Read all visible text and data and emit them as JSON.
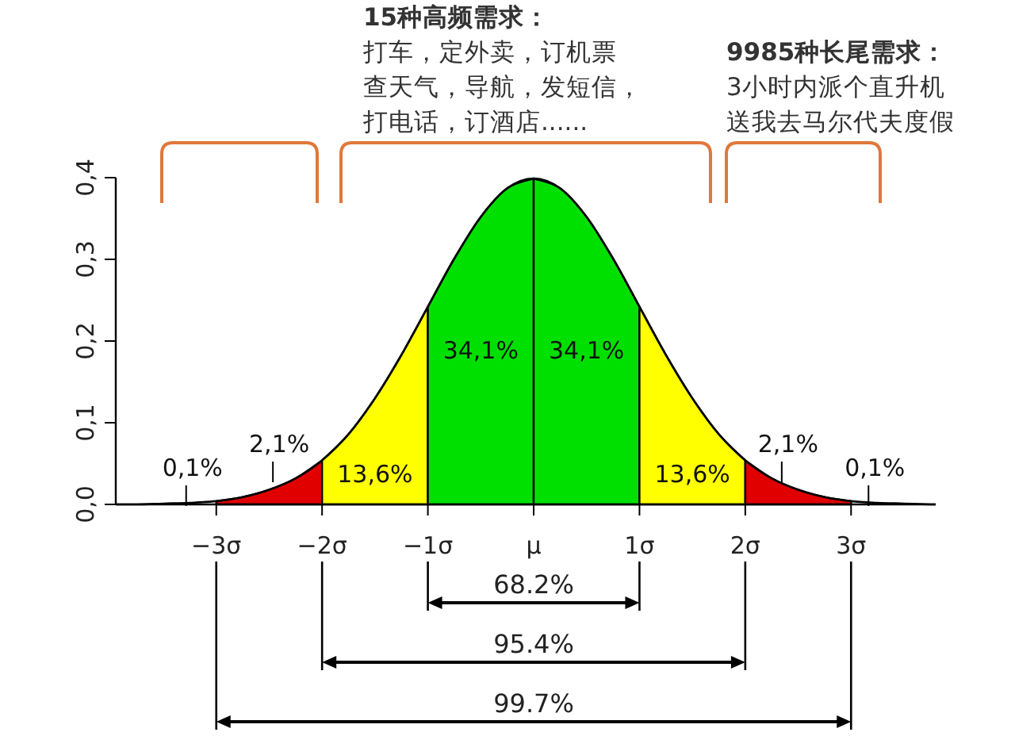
{
  "chart_data": {
    "type": "area",
    "xlim": [
      -3.95,
      3.8
    ],
    "ylim": [
      0,
      0.4
    ],
    "xticks": [
      {
        "value": -3,
        "label": "−3σ"
      },
      {
        "value": -2,
        "label": "−2σ"
      },
      {
        "value": -1,
        "label": "−1σ"
      },
      {
        "value": 0,
        "label": "μ"
      },
      {
        "value": 1,
        "label": "1σ"
      },
      {
        "value": 2,
        "label": "2σ"
      },
      {
        "value": 3,
        "label": "3σ"
      }
    ],
    "yticks": [
      {
        "value": 0,
        "label": "0,0"
      },
      {
        "value": 0.1,
        "label": "0,1"
      },
      {
        "value": 0.2,
        "label": "0,2"
      },
      {
        "value": 0.3,
        "label": "0,3"
      },
      {
        "value": 0.4,
        "label": "0,4"
      }
    ],
    "series": [
      {
        "color": "#e00000",
        "x": [
          -3,
          -2.75,
          -2.5,
          -2.25,
          -2
        ],
        "values": [
          0.004,
          0.009,
          0.018,
          0.032,
          0.054
        ]
      },
      {
        "color": "#ffff00",
        "x": [
          -2,
          -1.75,
          -1.5,
          -1.25,
          -1
        ],
        "values": [
          0.054,
          0.086,
          0.13,
          0.183,
          0.242
        ]
      },
      {
        "color": "#00e000",
        "x": [
          -1,
          -0.75,
          -0.5,
          -0.25,
          0
        ],
        "values": [
          0.242,
          0.301,
          0.352,
          0.387,
          0.399
        ]
      },
      {
        "color": "#00e000",
        "x": [
          0,
          0.25,
          0.5,
          0.75,
          1
        ],
        "values": [
          0.399,
          0.387,
          0.352,
          0.301,
          0.242
        ]
      },
      {
        "color": "#ffff00",
        "x": [
          1,
          1.25,
          1.5,
          1.75,
          2
        ],
        "values": [
          0.242,
          0.183,
          0.13,
          0.086,
          0.054
        ]
      },
      {
        "color": "#e00000",
        "x": [
          2,
          2.25,
          2.5,
          2.75,
          3
        ],
        "values": [
          0.054,
          0.032,
          0.018,
          0.009,
          0.004
        ]
      },
      {
        "type": "line",
        "color": "#000000",
        "x": [
          -3.95,
          -3.75,
          -3.5,
          -3.25,
          -3,
          -2.75,
          -2.5,
          -2.25,
          -2,
          -1.75,
          -1.5,
          -1.25,
          -1,
          -0.75,
          -0.5,
          -0.25,
          0,
          0.25,
          0.5,
          0.75,
          1,
          1.25,
          1.5,
          1.75,
          2,
          2.25,
          2.5,
          2.75,
          3,
          3.25,
          3.5,
          3.75,
          3.8
        ],
        "values": [
          0,
          0,
          0.001,
          0.002,
          0.004,
          0.009,
          0.018,
          0.032,
          0.054,
          0.086,
          0.13,
          0.183,
          0.242,
          0.301,
          0.352,
          0.387,
          0.399,
          0.387,
          0.352,
          0.301,
          0.242,
          0.183,
          0.13,
          0.086,
          0.054,
          0.032,
          0.018,
          0.009,
          0.004,
          0.002,
          0.001,
          0,
          0
        ]
      }
    ],
    "annotations": [
      "0,1%",
      "2,1%",
      "13,6%",
      "34,1%",
      "34,1%",
      "13,6%",
      "2,1%",
      "0,1%",
      "68.2%",
      "95.4%",
      "99.7%",
      "15种高频需求：",
      "打车，定外卖，订机票",
      "查天气，导航，发短信，",
      "打电话，订酒店......",
      "9985种长尾需求：",
      "3小时内派个直升机",
      "送我去马尔代夫度假"
    ],
    "grid": false
  }
}
